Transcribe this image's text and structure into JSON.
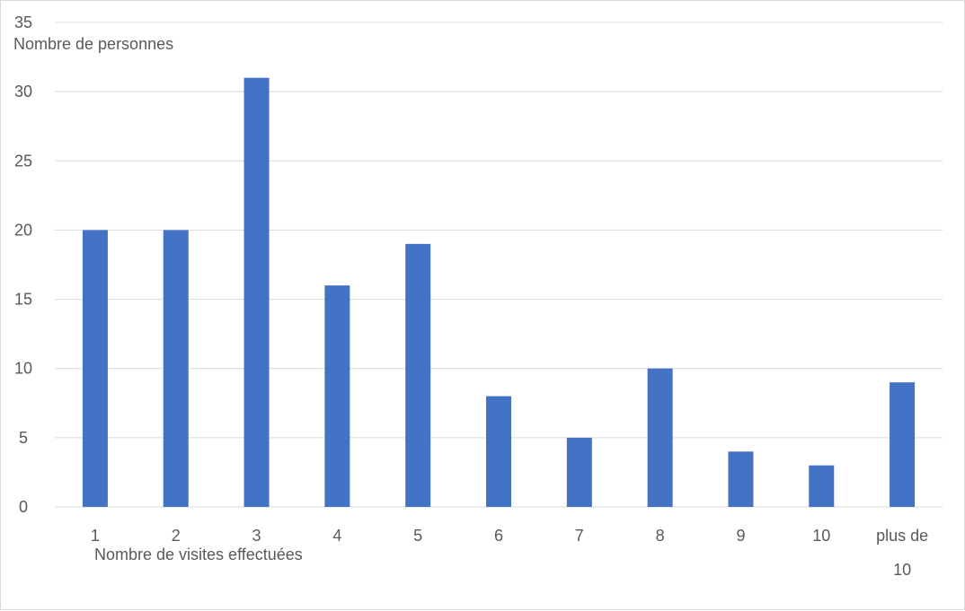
{
  "chart_data": {
    "type": "bar",
    "categories": [
      "1",
      "2",
      "3",
      "4",
      "5",
      "6",
      "7",
      "8",
      "9",
      "10",
      "plus de 10"
    ],
    "values": [
      20,
      20,
      31,
      16,
      19,
      8,
      5,
      10,
      4,
      3,
      9
    ],
    "title": "",
    "xlabel": "Nombre de visites effectuées",
    "ylabel": "Nombre de personnes",
    "ylim": [
      0,
      35
    ],
    "yticks": [
      0,
      5,
      10,
      15,
      20,
      25,
      30,
      35
    ],
    "grid": true,
    "legend": "none",
    "bar_color": "#4472c4",
    "grid_color": "#d9d9d9"
  }
}
